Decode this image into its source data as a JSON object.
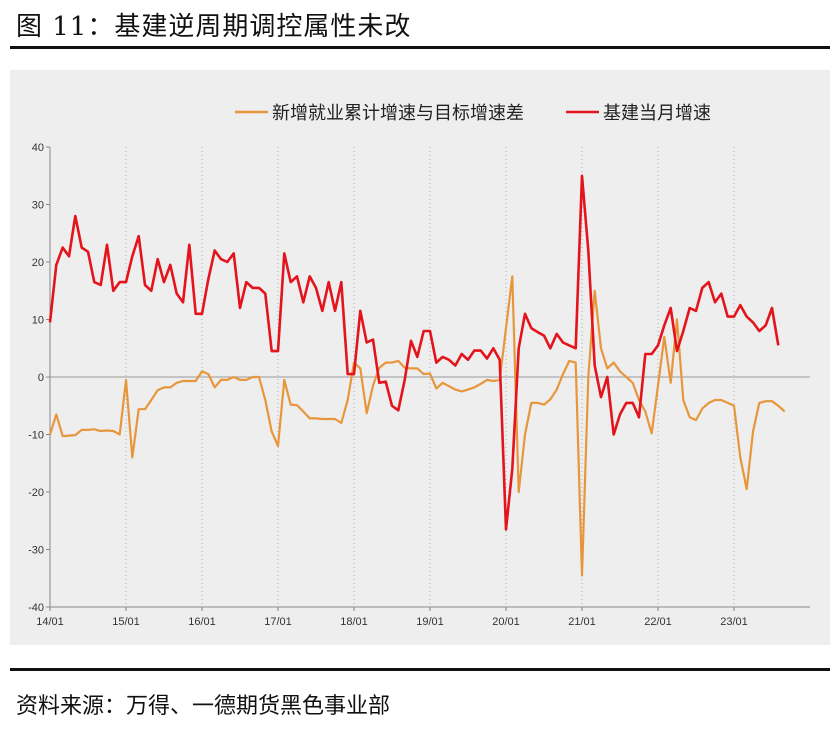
{
  "figure": {
    "title": "图 11：基建逆周期调控属性未改",
    "source": "资料来源：万得、一德期货黑色事业部"
  },
  "chart_data": {
    "type": "line",
    "ylim": [
      -40,
      40
    ],
    "yticks": [
      -40,
      -30,
      -20,
      -10,
      0,
      10,
      20,
      30,
      40
    ],
    "xticks": [
      "14/01",
      "15/01",
      "16/01",
      "17/01",
      "18/01",
      "19/01",
      "20/01",
      "21/01",
      "22/01",
      "23/01"
    ],
    "legend_position": "top",
    "grid": "vertical dotted at year starts",
    "series": [
      {
        "name": "新增就业累计增速与目标增速差",
        "color": "#e8963c",
        "start": "14/01",
        "values": [
          -10,
          -6.5,
          -10.3,
          -10.2,
          -10.1,
          -9.2,
          -9.2,
          -9.1,
          -9.4,
          -9.3,
          -9.4,
          -10,
          -0.5,
          -14,
          -5.6,
          -5.6,
          -4,
          -2.3,
          -1.8,
          -1.8,
          -1,
          -0.7,
          -0.7,
          -0.7,
          1,
          0.5,
          -1.8,
          -0.5,
          -0.5,
          0,
          -0.5,
          -0.5,
          0,
          0,
          -4,
          -9.5,
          -12,
          -0.5,
          -4.8,
          -4.9,
          -6,
          -7.2,
          -7.2,
          -7.3,
          -7.3,
          -7.3,
          -8,
          -4,
          2.5,
          1.5,
          -6.3,
          -1.5,
          1.6,
          2.5,
          2.5,
          2.8,
          1.6,
          1.5,
          1.5,
          0.5,
          0.6,
          -2,
          -1,
          -1.6,
          -2.2,
          -2.5,
          -2.2,
          -1.8,
          -1.2,
          -0.5,
          -0.7,
          -0.5,
          8.5,
          17.5,
          -20,
          -10,
          -4.5,
          -4.5,
          -4.8,
          -3.9,
          -2.2,
          0.5,
          2.8,
          2.5,
          -34.5,
          0,
          15,
          5,
          1.5,
          2.5,
          1,
          0,
          -1,
          -4,
          -6,
          -9.8,
          -1.5,
          7,
          -1,
          10,
          -4,
          -7,
          -7.5,
          -5.5,
          -4.5,
          -4,
          -4,
          -4.5,
          -5,
          -14,
          -19.5,
          -9.5,
          -4.5,
          -4.2,
          -4.2,
          -5,
          -6
        ]
      },
      {
        "name": "基建当月增速",
        "color": "#e3141b",
        "start": "14/01",
        "values": [
          9.5,
          19.5,
          22.5,
          21,
          28,
          22.5,
          21.8,
          16.5,
          16,
          23,
          15,
          16.5,
          16.5,
          21,
          24.5,
          16,
          15,
          20.5,
          16.5,
          19.5,
          14.5,
          13,
          23,
          11,
          11,
          17,
          22,
          20.5,
          20,
          21.5,
          12,
          16.5,
          15.5,
          15.5,
          14.5,
          4.5,
          4.5,
          21.5,
          16.5,
          17.5,
          13,
          17.5,
          15.5,
          11.5,
          16.5,
          11.5,
          16.5,
          0.5,
          0.5,
          11.5,
          6,
          6.5,
          -1,
          -0.8,
          -5,
          -5.8,
          -0.5,
          6.3,
          3.5,
          8,
          8,
          2.5,
          3.5,
          3,
          2,
          4,
          3,
          4.6,
          4.6,
          3.2,
          5,
          3,
          -26.5,
          -16,
          5,
          11,
          8.5,
          7.8,
          7.2,
          5,
          7.5,
          6,
          5.5,
          5,
          35,
          22,
          2,
          -3.5,
          0,
          -10,
          -6.5,
          -4.5,
          -4.5,
          -7,
          4,
          4,
          5.5,
          9,
          12,
          4.5,
          8,
          12,
          11.5,
          15.5,
          16.5,
          13,
          14.5,
          10.5,
          10.5,
          12.5,
          10.5,
          9.5,
          8,
          9,
          12,
          5.5
        ]
      }
    ]
  }
}
